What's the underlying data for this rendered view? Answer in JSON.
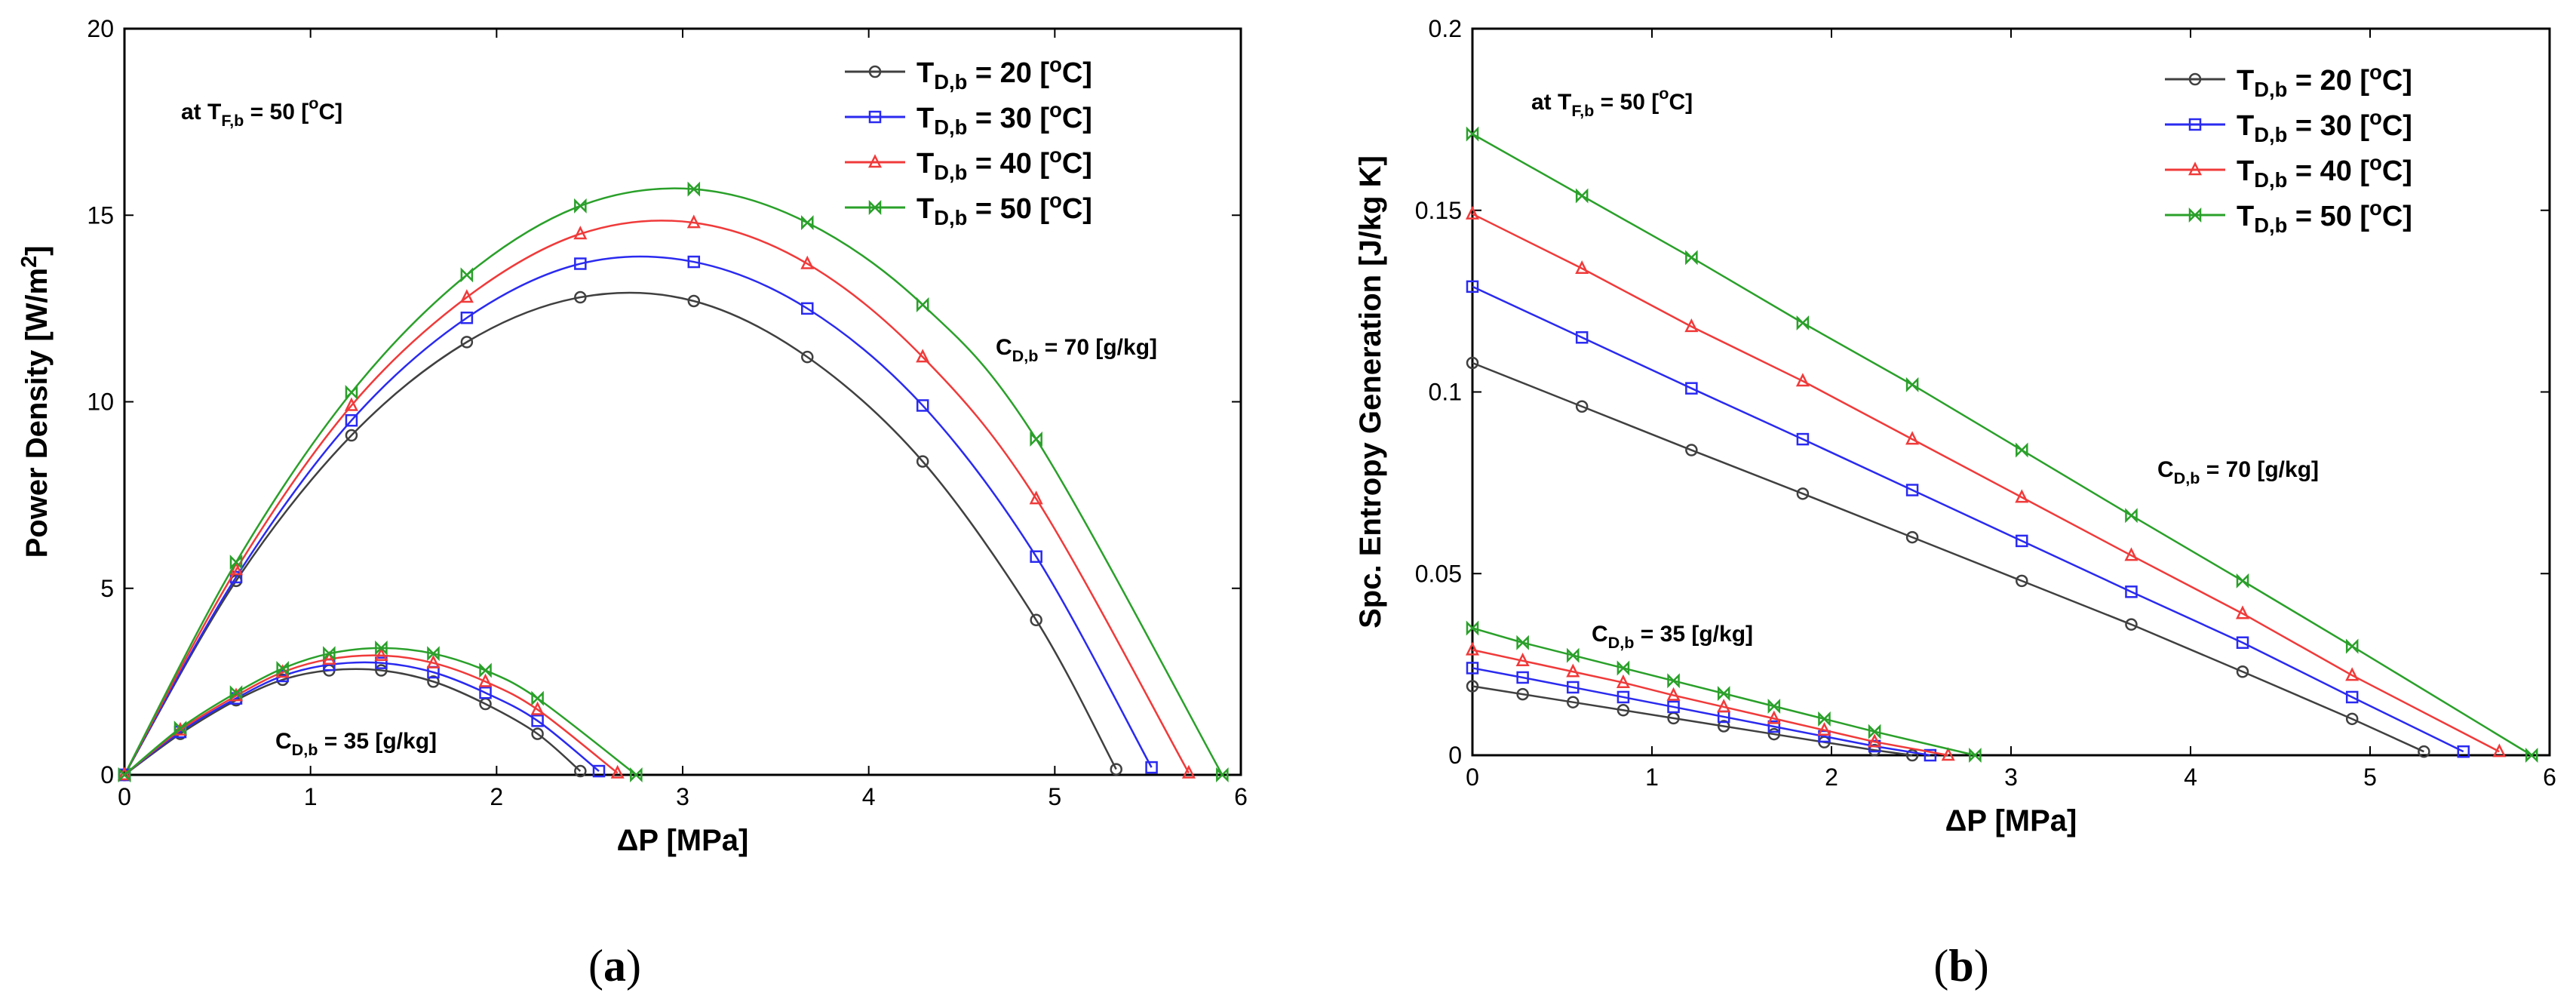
{
  "figure": {
    "panel_a_label": "a",
    "panel_b_label": "b"
  },
  "chart_data": [
    {
      "type": "line",
      "panel": "a",
      "title": "",
      "xlabel": "ΔP  [MPa]",
      "ylabel": "Power Density [W/m²]",
      "ylabel_parts": {
        "main": "Power Density [W/m",
        "sup": "2",
        "end": "]"
      },
      "xlim": [
        0,
        6
      ],
      "ylim": [
        0,
        20
      ],
      "xticks": [
        0,
        1,
        2,
        3,
        4,
        5,
        6
      ],
      "yticks": [
        0,
        5,
        10,
        15,
        20
      ],
      "ytick_labels": [
        "0",
        "5",
        "10",
        "15",
        "20"
      ],
      "grid": false,
      "legend_position": "top-right",
      "annotations": {
        "condition": {
          "pre": "at T",
          "sub": "F,b",
          "post": " = 50 [",
          "sup": "o",
          "end": "C]"
        },
        "high": {
          "pre": "C",
          "sub": "D,b",
          "post": " = 70 [g/kg]"
        },
        "low": {
          "pre": "C",
          "sub": "D,b",
          "post": " = 35 [g/kg]"
        }
      },
      "series": [
        {
          "name": "T_D,b = 20 [oC]",
          "legend": {
            "pre": "T",
            "sub": "D,b",
            "post": " = 20  [",
            "sup": "o",
            "end": "C]"
          },
          "color": "#404040",
          "marker": "circle",
          "group": "C_D,b = 70 g/kg",
          "x": [
            0,
            0.6,
            1.22,
            1.84,
            2.45,
            3.06,
            3.67,
            4.29,
            4.9,
            5.33
          ],
          "y": [
            0,
            5.2,
            9.1,
            11.6,
            12.8,
            12.7,
            11.2,
            8.4,
            4.15,
            0.15
          ]
        },
        {
          "name": "T_D,b = 30 [oC]",
          "legend": {
            "pre": "T",
            "sub": "D,b",
            "post": " = 30  [",
            "sup": "o",
            "end": "C]"
          },
          "color": "#2a2af0",
          "marker": "square",
          "group": "C_D,b = 70 g/kg",
          "x": [
            0,
            0.6,
            1.22,
            1.84,
            2.45,
            3.06,
            3.67,
            4.29,
            4.9,
            5.52
          ],
          "y": [
            0,
            5.3,
            9.5,
            12.25,
            13.7,
            13.75,
            12.5,
            9.9,
            5.85,
            0.2
          ]
        },
        {
          "name": "T_D,b = 40 [oC]",
          "legend": {
            "pre": "T",
            "sub": "D,b",
            "post": " = 40  [",
            "sup": "o",
            "end": "C]"
          },
          "color": "#f03a3a",
          "marker": "triangle",
          "group": "C_D,b = 70 g/kg",
          "x": [
            0,
            0.6,
            1.22,
            1.84,
            2.45,
            3.06,
            3.67,
            4.29,
            4.9,
            5.72
          ],
          "y": [
            0,
            5.5,
            9.9,
            12.8,
            14.5,
            14.8,
            13.7,
            11.2,
            7.4,
            0.05
          ]
        },
        {
          "name": "T_D,b = 50 [oC]",
          "legend": {
            "pre": "T",
            "sub": "D,b",
            "post": " = 50  [",
            "sup": "o",
            "end": "C]"
          },
          "color": "#2aa02a",
          "marker": "bowtie",
          "group": "C_D,b = 70 g/kg",
          "x": [
            0,
            0.6,
            1.22,
            1.84,
            2.45,
            3.06,
            3.67,
            4.29,
            4.9,
            5.9
          ],
          "y": [
            0,
            5.7,
            10.25,
            13.4,
            15.25,
            15.7,
            14.8,
            12.6,
            9.0,
            0.0
          ]
        },
        {
          "name": "T_D,b = 20 [oC]",
          "color": "#404040",
          "marker": "circle",
          "group": "C_D,b = 35 g/kg",
          "x": [
            0,
            0.3,
            0.6,
            0.85,
            1.1,
            1.38,
            1.66,
            1.94,
            2.22,
            2.45
          ],
          "y": [
            0,
            1.1,
            2.0,
            2.55,
            2.8,
            2.8,
            2.5,
            1.9,
            1.1,
            0.1
          ]
        },
        {
          "name": "T_D,b = 30 [oC]",
          "color": "#2a2af0",
          "marker": "square",
          "group": "C_D,b = 35 g/kg",
          "x": [
            0,
            0.3,
            0.6,
            0.85,
            1.1,
            1.38,
            1.66,
            1.94,
            2.22,
            2.55
          ],
          "y": [
            0,
            1.15,
            2.05,
            2.65,
            2.95,
            3.0,
            2.75,
            2.2,
            1.45,
            0.1
          ]
        },
        {
          "name": "T_D,b = 40 [oC]",
          "color": "#f03a3a",
          "marker": "triangle",
          "group": "C_D,b = 35 g/kg",
          "x": [
            0,
            0.3,
            0.6,
            0.85,
            1.1,
            1.38,
            1.66,
            1.94,
            2.22,
            2.65
          ],
          "y": [
            0,
            1.2,
            2.12,
            2.75,
            3.1,
            3.2,
            3.0,
            2.5,
            1.75,
            0.05
          ]
        },
        {
          "name": "T_D,b = 50 [oC]",
          "color": "#2aa02a",
          "marker": "bowtie",
          "group": "C_D,b = 35 g/kg",
          "x": [
            0,
            0.3,
            0.6,
            0.85,
            1.1,
            1.38,
            1.66,
            1.94,
            2.22,
            2.75
          ],
          "y": [
            0,
            1.25,
            2.2,
            2.85,
            3.25,
            3.4,
            3.25,
            2.8,
            2.05,
            0.0
          ]
        }
      ]
    },
    {
      "type": "line",
      "panel": "b",
      "title": "",
      "xlabel": "ΔP  [MPa]",
      "ylabel": "Spc. Entropy Generation [J/kg K]",
      "ylabel_parts": {
        "main": "Spc. Entropy Generation [J/kg K]",
        "sup": "",
        "end": ""
      },
      "xlim": [
        0,
        6
      ],
      "ylim": [
        0,
        0.2
      ],
      "xticks": [
        0,
        1,
        2,
        3,
        4,
        5,
        6
      ],
      "yticks": [
        0,
        0.05,
        0.1,
        0.15,
        0.2
      ],
      "ytick_labels": [
        "0",
        "0.05",
        "0.1",
        "0.15",
        "0.2"
      ],
      "grid": false,
      "legend_position": "top-right",
      "annotations": {
        "condition": {
          "pre": "at T",
          "sub": "F,b",
          "post": " = 50 [",
          "sup": "o",
          "end": "C]"
        },
        "high": {
          "pre": "C",
          "sub": "D,b",
          "post": " = 70 [g/kg]"
        },
        "low": {
          "pre": "C",
          "sub": "D,b",
          "post": " = 35 [g/kg]"
        }
      },
      "series": [
        {
          "name": "T_D,b = 20 [oC]",
          "legend": {
            "pre": "T",
            "sub": "D,b",
            "post": " = 20  [",
            "sup": "o",
            "end": "C]"
          },
          "color": "#404040",
          "marker": "circle",
          "group": "C_D,b = 70 g/kg",
          "x": [
            0,
            0.61,
            1.22,
            1.84,
            2.45,
            3.06,
            3.67,
            4.29,
            4.9,
            5.3
          ],
          "y": [
            0.108,
            0.096,
            0.084,
            0.072,
            0.06,
            0.048,
            0.036,
            0.023,
            0.01,
            0.001
          ]
        },
        {
          "name": "T_D,b = 30 [oC]",
          "legend": {
            "pre": "T",
            "sub": "D,b",
            "post": " = 30  [",
            "sup": "o",
            "end": "C]"
          },
          "color": "#2a2af0",
          "marker": "square",
          "group": "C_D,b = 70 g/kg",
          "x": [
            0,
            0.61,
            1.22,
            1.84,
            2.45,
            3.06,
            3.67,
            4.29,
            4.9,
            5.52
          ],
          "y": [
            0.129,
            0.115,
            0.101,
            0.087,
            0.073,
            0.059,
            0.045,
            0.031,
            0.016,
            0.001
          ]
        },
        {
          "name": "T_D,b = 40 [oC]",
          "legend": {
            "pre": "T",
            "sub": "D,b",
            "post": " = 40  [",
            "sup": "o",
            "end": "C]"
          },
          "color": "#f03a3a",
          "marker": "triangle",
          "group": "C_D,b = 70 g/kg",
          "x": [
            0,
            0.61,
            1.22,
            1.84,
            2.45,
            3.06,
            3.67,
            4.29,
            4.9,
            5.72
          ],
          "y": [
            0.149,
            0.134,
            0.118,
            0.103,
            0.087,
            0.071,
            0.055,
            0.039,
            0.022,
            0.001
          ]
        },
        {
          "name": "T_D,b = 50 [oC]",
          "legend": {
            "pre": "T",
            "sub": "D,b",
            "post": " = 50  [",
            "sup": "o",
            "end": "C]"
          },
          "color": "#2aa02a",
          "marker": "bowtie",
          "group": "C_D,b = 70 g/kg",
          "x": [
            0,
            0.61,
            1.22,
            1.84,
            2.45,
            3.06,
            3.67,
            4.29,
            4.9,
            5.9
          ],
          "y": [
            0.171,
            0.154,
            0.137,
            0.119,
            0.102,
            0.084,
            0.066,
            0.048,
            0.03,
            0.0
          ]
        },
        {
          "name": "T_D,b = 20 [oC]",
          "color": "#404040",
          "marker": "circle",
          "group": "C_D,b = 35 g/kg",
          "x": [
            0,
            0.28,
            0.56,
            0.84,
            1.12,
            1.4,
            1.68,
            1.96,
            2.24,
            2.45
          ],
          "y": [
            0.019,
            0.0168,
            0.0146,
            0.0124,
            0.0102,
            0.008,
            0.0058,
            0.0036,
            0.0014,
            0.0
          ]
        },
        {
          "name": "T_D,b = 30 [oC]",
          "color": "#2a2af0",
          "marker": "square",
          "group": "C_D,b = 35 g/kg",
          "x": [
            0,
            0.28,
            0.56,
            0.84,
            1.12,
            1.4,
            1.68,
            1.96,
            2.24,
            2.55
          ],
          "y": [
            0.024,
            0.0214,
            0.0187,
            0.016,
            0.0133,
            0.0106,
            0.0079,
            0.0052,
            0.0025,
            0.0
          ]
        },
        {
          "name": "T_D,b = 40 [oC]",
          "color": "#f03a3a",
          "marker": "triangle",
          "group": "C_D,b = 35 g/kg",
          "x": [
            0,
            0.28,
            0.56,
            0.84,
            1.12,
            1.4,
            1.68,
            1.96,
            2.24,
            2.65
          ],
          "y": [
            0.029,
            0.026,
            0.023,
            0.02,
            0.0165,
            0.0133,
            0.0101,
            0.0069,
            0.0037,
            0.0
          ]
        },
        {
          "name": "T_D,b = 50 [oC]",
          "color": "#2aa02a",
          "marker": "bowtie",
          "group": "C_D,b = 35 g/kg",
          "x": [
            0,
            0.28,
            0.56,
            0.84,
            1.12,
            1.4,
            1.68,
            1.96,
            2.24,
            2.8
          ],
          "y": [
            0.035,
            0.031,
            0.0275,
            0.024,
            0.0205,
            0.017,
            0.0135,
            0.01,
            0.0065,
            0.0
          ]
        }
      ]
    }
  ]
}
